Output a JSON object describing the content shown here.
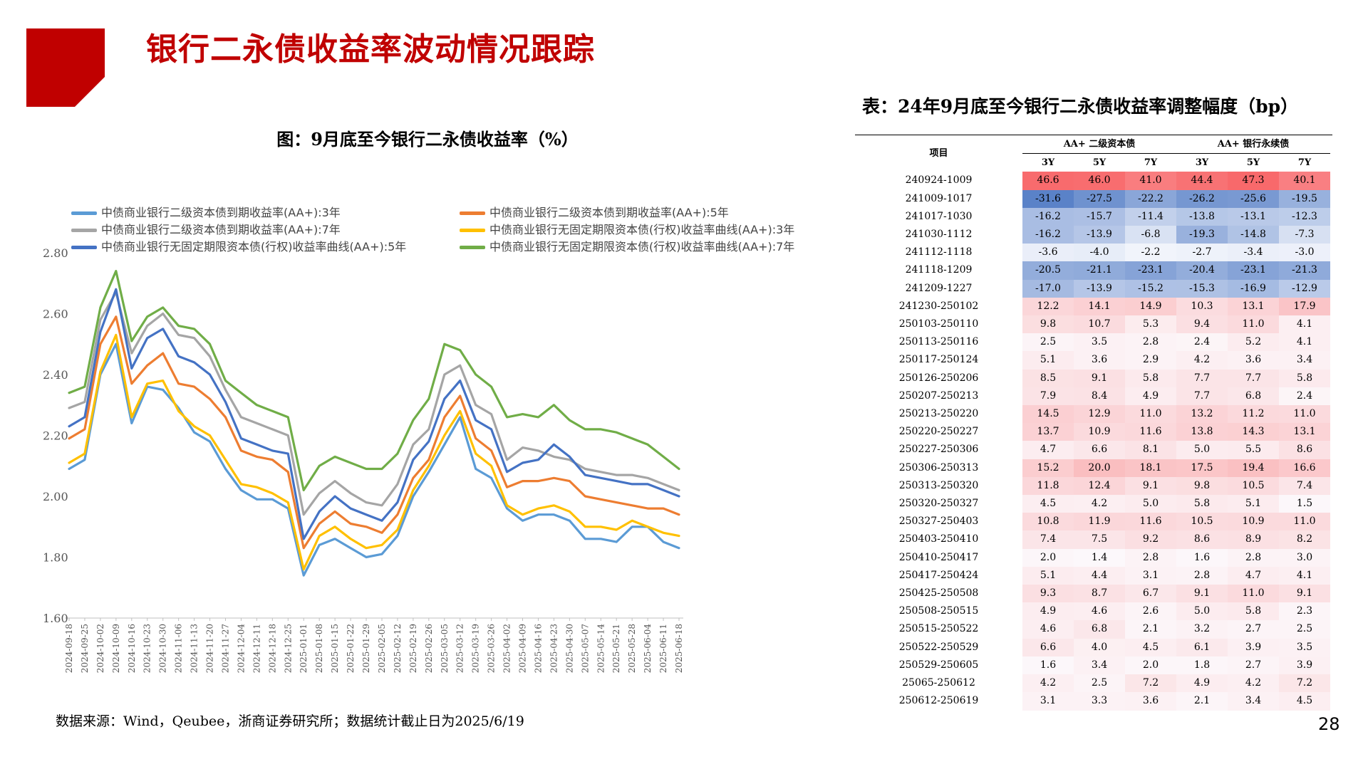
{
  "header": {
    "title": "银行二永债收益率波动情况跟踪"
  },
  "chart_title": "图：9月底至今银行二永债收益率（%）",
  "source": "数据来源：Wind，Qeubee，浙商证券研究所；数据统计截止日为2025/6/19",
  "page_number": "28",
  "chart_data": {
    "type": "line",
    "ylim": [
      1.6,
      2.8
    ],
    "yticks": [
      "2.80",
      "2.60",
      "2.40",
      "2.20",
      "2.00",
      "1.80",
      "1.60"
    ],
    "grid": false,
    "legend_position": "top",
    "x_ticks": [
      "2024-09-18",
      "2024-09-25",
      "2024-10-02",
      "2024-10-09",
      "2024-10-16",
      "2024-10-23",
      "2024-10-30",
      "2024-11-06",
      "2024-11-13",
      "2024-11-20",
      "2024-11-27",
      "2024-12-04",
      "2024-12-11",
      "2024-12-18",
      "2024-12-25",
      "2025-01-01",
      "2025-01-08",
      "2025-01-15",
      "2025-01-22",
      "2025-01-29",
      "2025-02-05",
      "2025-02-12",
      "2025-02-19",
      "2025-02-26",
      "2025-03-05",
      "2025-03-12",
      "2025-03-19",
      "2025-03-26",
      "2025-04-02",
      "2025-04-09",
      "2025-04-16",
      "2025-04-23",
      "2025-04-30",
      "2025-05-07",
      "2025-05-14",
      "2025-05-21",
      "2025-05-28",
      "2025-06-04",
      "2025-06-11",
      "2025-06-18"
    ],
    "series": [
      {
        "name": "中债商业银行二级资本债到期收益率(AA+):3年",
        "color": "#5b9bd5",
        "values": [
          2.09,
          2.12,
          2.4,
          2.5,
          2.24,
          2.36,
          2.35,
          2.29,
          2.21,
          2.18,
          2.09,
          2.02,
          1.99,
          1.99,
          1.96,
          1.74,
          1.84,
          1.86,
          1.83,
          1.8,
          1.81,
          1.87,
          2.0,
          2.08,
          2.17,
          2.26,
          2.09,
          2.06,
          1.96,
          1.92,
          1.94,
          1.94,
          1.92,
          1.86,
          1.86,
          1.85,
          1.9,
          1.9,
          1.85,
          1.83
        ]
      },
      {
        "name": "中债商业银行二级资本债到期收益率(AA+):5年",
        "color": "#ed7d31",
        "values": [
          2.19,
          2.22,
          2.5,
          2.59,
          2.37,
          2.43,
          2.47,
          2.37,
          2.36,
          2.32,
          2.26,
          2.15,
          2.13,
          2.12,
          2.08,
          1.83,
          1.91,
          1.95,
          1.91,
          1.9,
          1.88,
          1.94,
          2.06,
          2.12,
          2.26,
          2.33,
          2.19,
          2.15,
          2.03,
          2.05,
          2.05,
          2.06,
          2.05,
          2.0,
          1.99,
          1.98,
          1.97,
          1.96,
          1.96,
          1.94
        ]
      },
      {
        "name": "中债商业银行二级资本债到期收益率(AA+):7年",
        "color": "#a5a5a5",
        "values": [
          2.29,
          2.31,
          2.58,
          2.67,
          2.47,
          2.56,
          2.6,
          2.53,
          2.52,
          2.46,
          2.35,
          2.26,
          2.24,
          2.22,
          2.2,
          1.94,
          2.01,
          2.05,
          2.01,
          1.98,
          1.97,
          2.04,
          2.17,
          2.22,
          2.4,
          2.43,
          2.3,
          2.27,
          2.12,
          2.16,
          2.15,
          2.13,
          2.12,
          2.09,
          2.08,
          2.07,
          2.07,
          2.06,
          2.04,
          2.02
        ]
      },
      {
        "name": "中债商业银行无固定期限资本债(行权)收益率曲线(AA+):3年",
        "color": "#ffc000",
        "values": [
          2.11,
          2.14,
          2.41,
          2.53,
          2.26,
          2.37,
          2.38,
          2.28,
          2.23,
          2.2,
          2.12,
          2.04,
          2.03,
          2.01,
          1.98,
          1.76,
          1.87,
          1.9,
          1.86,
          1.83,
          1.84,
          1.89,
          2.02,
          2.1,
          2.2,
          2.28,
          2.14,
          2.1,
          1.97,
          1.94,
          1.96,
          1.97,
          1.95,
          1.9,
          1.9,
          1.89,
          1.92,
          1.9,
          1.88,
          1.87
        ]
      },
      {
        "name": "中债商业银行无固定期限资本债(行权)收益率曲线(AA+):5年",
        "color": "#4472c4",
        "values": [
          2.23,
          2.26,
          2.54,
          2.68,
          2.42,
          2.52,
          2.55,
          2.46,
          2.44,
          2.4,
          2.31,
          2.19,
          2.17,
          2.15,
          2.14,
          1.86,
          1.95,
          2.0,
          1.96,
          1.94,
          1.92,
          1.98,
          2.12,
          2.18,
          2.32,
          2.38,
          2.25,
          2.22,
          2.08,
          2.11,
          2.12,
          2.17,
          2.13,
          2.07,
          2.06,
          2.05,
          2.04,
          2.04,
          2.02,
          2.0
        ]
      },
      {
        "name": "中债商业银行无固定期限资本债(行权)收益率曲线(AA+):7年",
        "color": "#70ad47",
        "values": [
          2.34,
          2.36,
          2.62,
          2.74,
          2.51,
          2.59,
          2.62,
          2.56,
          2.55,
          2.5,
          2.38,
          2.34,
          2.3,
          2.28,
          2.26,
          2.02,
          2.1,
          2.13,
          2.11,
          2.09,
          2.09,
          2.14,
          2.25,
          2.32,
          2.5,
          2.48,
          2.4,
          2.36,
          2.26,
          2.27,
          2.26,
          2.3,
          2.25,
          2.22,
          2.22,
          2.21,
          2.19,
          2.17,
          2.13,
          2.09
        ]
      }
    ]
  },
  "table": {
    "title": "表：24年9月底至今银行二永债收益率调整幅度（bp）",
    "col_item": "项目",
    "group1": "AA+ 二级资本债",
    "group2": "AA+ 银行永续债",
    "sub": [
      "3Y",
      "5Y",
      "7Y",
      "3Y",
      "5Y",
      "7Y"
    ],
    "rows": [
      {
        "period": "240924-1009",
        "v": [
          "46.6",
          "46.0",
          "41.0",
          "44.4",
          "47.3",
          "40.1"
        ]
      },
      {
        "period": "241009-1017",
        "v": [
          "-31.6",
          "-27.5",
          "-22.2",
          "-26.2",
          "-25.6",
          "-19.5"
        ]
      },
      {
        "period": "241017-1030",
        "v": [
          "-16.2",
          "-15.7",
          "-11.4",
          "-13.8",
          "-13.1",
          "-12.3"
        ]
      },
      {
        "period": "241030-1112",
        "v": [
          "-16.2",
          "-13.9",
          "-6.8",
          "-19.3",
          "-14.8",
          "-7.3"
        ]
      },
      {
        "period": "241112-1118",
        "v": [
          "-3.6",
          "-4.0",
          "-2.2",
          "-2.7",
          "-3.4",
          "-3.0"
        ]
      },
      {
        "period": "241118-1209",
        "v": [
          "-20.5",
          "-21.1",
          "-23.1",
          "-20.4",
          "-23.1",
          "-21.3"
        ]
      },
      {
        "period": "241209-1227",
        "v": [
          "-17.0",
          "-13.9",
          "-15.2",
          "-15.3",
          "-16.9",
          "-12.9"
        ]
      },
      {
        "period": "241230-250102",
        "v": [
          "12.2",
          "14.1",
          "14.9",
          "10.3",
          "13.1",
          "17.9"
        ]
      },
      {
        "period": "250103-250110",
        "v": [
          "9.8",
          "10.7",
          "5.3",
          "9.4",
          "11.0",
          "4.1"
        ]
      },
      {
        "period": "250113-250116",
        "v": [
          "2.5",
          "3.5",
          "2.8",
          "2.4",
          "5.2",
          "4.1"
        ]
      },
      {
        "period": "250117-250124",
        "v": [
          "5.1",
          "3.6",
          "2.9",
          "4.2",
          "3.6",
          "3.4"
        ]
      },
      {
        "period": "250126-250206",
        "v": [
          "8.5",
          "9.1",
          "5.8",
          "7.7",
          "7.7",
          "5.8"
        ]
      },
      {
        "period": "250207-250213",
        "v": [
          "7.9",
          "8.4",
          "4.9",
          "7.7",
          "6.8",
          "2.4"
        ]
      },
      {
        "period": "250213-250220",
        "v": [
          "14.5",
          "12.9",
          "11.0",
          "13.2",
          "11.2",
          "11.0"
        ]
      },
      {
        "period": "250220-250227",
        "v": [
          "13.7",
          "10.9",
          "11.6",
          "13.8",
          "14.3",
          "13.1"
        ]
      },
      {
        "period": "250227-250306",
        "v": [
          "4.7",
          "6.6",
          "8.1",
          "5.0",
          "5.5",
          "8.6"
        ]
      },
      {
        "period": "250306-250313",
        "v": [
          "15.2",
          "20.0",
          "18.1",
          "17.5",
          "19.4",
          "16.6"
        ]
      },
      {
        "period": "250313-250320",
        "v": [
          "11.8",
          "12.4",
          "9.1",
          "9.8",
          "10.5",
          "7.4"
        ]
      },
      {
        "period": "250320-250327",
        "v": [
          "4.5",
          "4.2",
          "5.0",
          "5.8",
          "5.1",
          "1.5"
        ]
      },
      {
        "period": "250327-250403",
        "v": [
          "10.8",
          "11.9",
          "11.6",
          "10.5",
          "10.9",
          "11.0"
        ]
      },
      {
        "period": "250403-250410",
        "v": [
          "7.4",
          "7.5",
          "9.2",
          "8.6",
          "8.9",
          "8.2"
        ]
      },
      {
        "period": "250410-250417",
        "v": [
          "2.0",
          "1.4",
          "2.8",
          "1.6",
          "2.8",
          "3.0"
        ]
      },
      {
        "period": "250417-250424",
        "v": [
          "5.1",
          "4.4",
          "3.1",
          "2.8",
          "4.7",
          "4.1"
        ]
      },
      {
        "period": "250425-250508",
        "v": [
          "9.3",
          "8.7",
          "6.7",
          "9.1",
          "11.0",
          "9.1"
        ]
      },
      {
        "period": "250508-250515",
        "v": [
          "4.9",
          "4.6",
          "2.6",
          "5.0",
          "5.8",
          "2.3"
        ]
      },
      {
        "period": "250515-250522",
        "v": [
          "4.6",
          "6.8",
          "2.1",
          "3.2",
          "2.7",
          "2.5"
        ]
      },
      {
        "period": "250522-250529",
        "v": [
          "6.6",
          "4.0",
          "4.5",
          "6.1",
          "3.9",
          "3.5"
        ]
      },
      {
        "period": "250529-250605",
        "v": [
          "1.6",
          "3.4",
          "2.0",
          "1.8",
          "2.7",
          "3.9"
        ]
      },
      {
        "period": "25065-250612",
        "v": [
          "4.2",
          "2.5",
          "7.2",
          "4.9",
          "4.2",
          "7.2"
        ]
      },
      {
        "period": "250612-250619",
        "v": [
          "3.1",
          "3.3",
          "3.6",
          "2.1",
          "3.4",
          "4.5"
        ]
      }
    ]
  }
}
